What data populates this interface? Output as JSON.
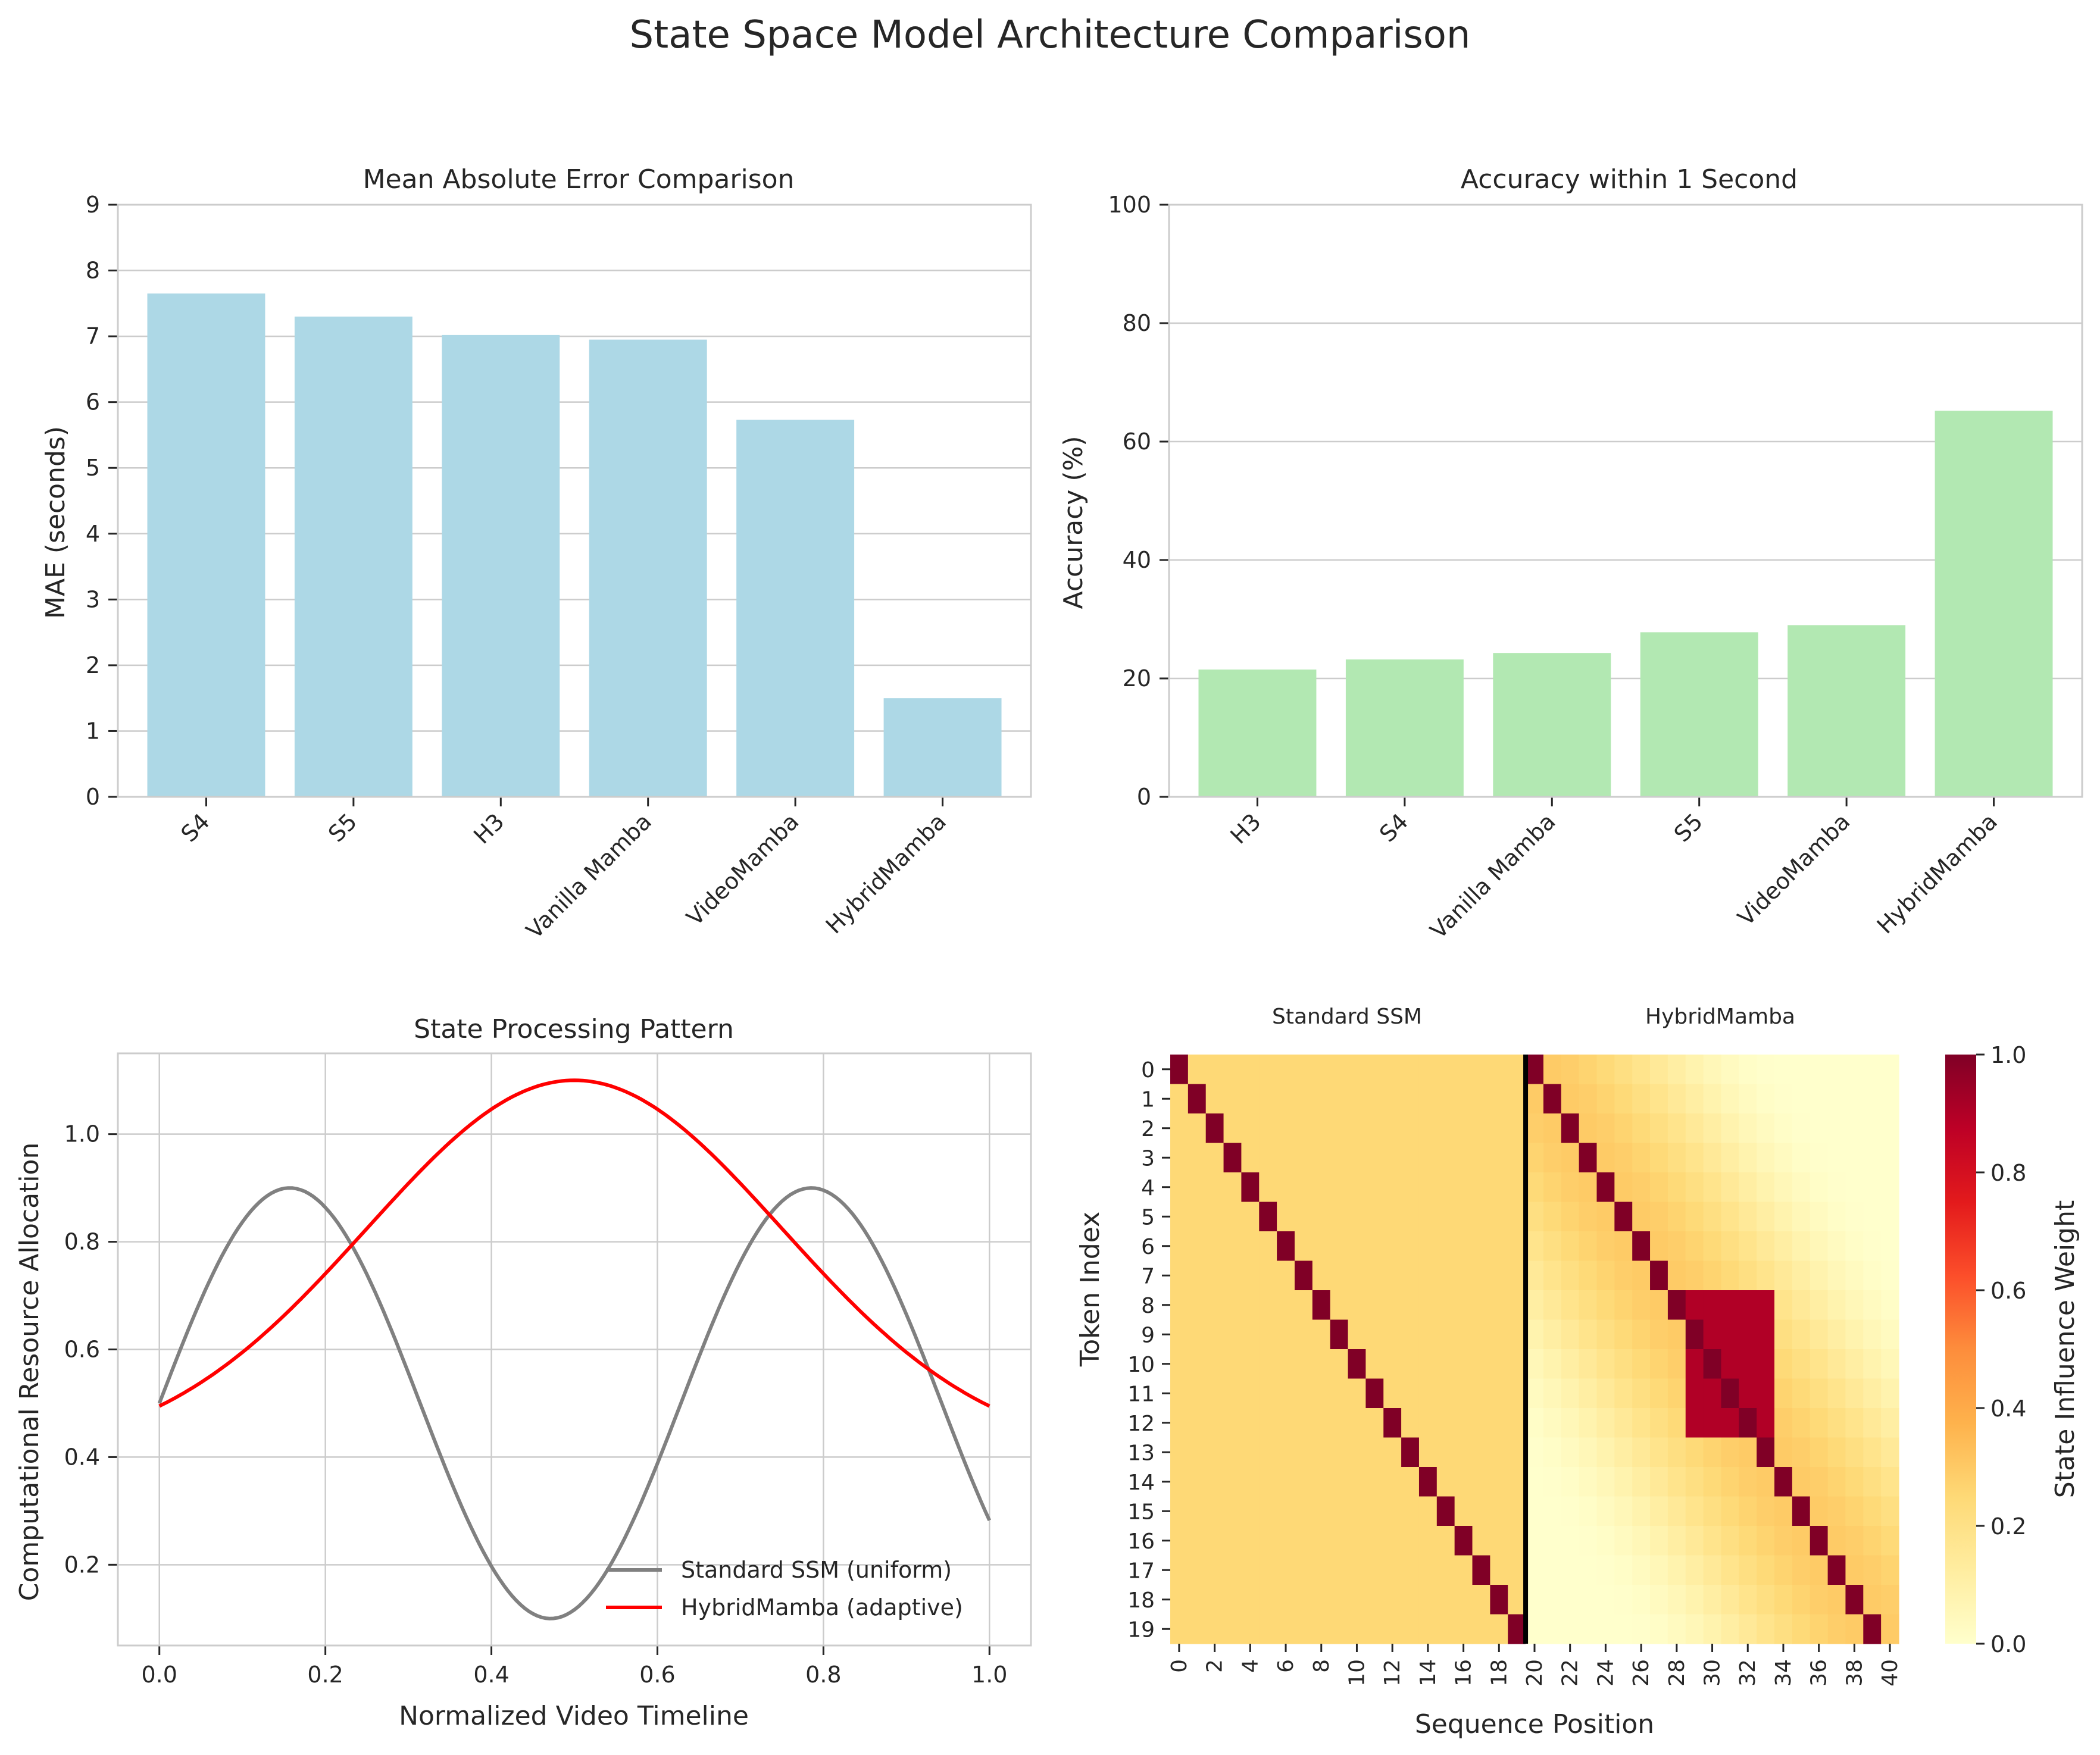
{
  "suptitle": "State Space Model Architecture Comparison",
  "chart_data": [
    {
      "id": "mae",
      "type": "bar",
      "title": "Mean Absolute Error Comparison",
      "xlabel": "",
      "ylabel": "MAE (seconds)",
      "categories": [
        "S4",
        "S5",
        "H3",
        "Vanilla Mamba",
        "VideoMamba",
        "HybridMamba"
      ],
      "values": [
        7.65,
        7.3,
        7.02,
        6.95,
        5.73,
        1.5
      ],
      "ylim": [
        0,
        9
      ],
      "yticks": [
        0,
        1,
        2,
        3,
        4,
        5,
        6,
        7,
        8,
        9
      ],
      "color": "#add8e6",
      "grid": "y"
    },
    {
      "id": "acc",
      "type": "bar",
      "title": "Accuracy within 1 Second",
      "xlabel": "",
      "ylabel": "Accuracy (%)",
      "categories": [
        "H3",
        "S4",
        "Vanilla Mamba",
        "S5",
        "VideoMamba",
        "HybridMamba"
      ],
      "values": [
        21.5,
        23.2,
        24.3,
        27.8,
        29.0,
        65.2
      ],
      "ylim": [
        0,
        100
      ],
      "yticks": [
        0,
        20,
        40,
        60,
        80,
        100
      ],
      "color": "#b2e8b2",
      "grid": "y"
    },
    {
      "id": "pattern",
      "type": "line",
      "title": "State Processing Pattern",
      "xlabel": "Normalized Video Timeline",
      "ylabel": "Computational Resource Allocation",
      "xlim": [
        -0.05,
        1.05
      ],
      "ylim": [
        0.05,
        1.15
      ],
      "xticks": [
        0.0,
        0.2,
        0.4,
        0.6,
        0.8,
        1.0
      ],
      "yticks": [
        0.2,
        0.4,
        0.6,
        0.8,
        1.0
      ],
      "series": [
        {
          "name": "Standard SSM (uniform)",
          "color": "#808080",
          "formula": "0.5 + 0.4*sin(10*x)"
        },
        {
          "name": "HybridMamba (adaptive)",
          "color": "#ff0000",
          "formula": "0.4 + 0.7*exp(-(x-0.5)^2/(2*0.25^2))"
        }
      ],
      "legend": "lower-right",
      "grid": "both"
    },
    {
      "id": "heatmap",
      "type": "heatmap",
      "panels": [
        {
          "title": "Standard SSM",
          "columns": [
            0,
            19
          ],
          "description": "background 0.25, diagonal 1.0"
        },
        {
          "title": "HybridMamba",
          "columns": [
            20,
            40
          ],
          "description": "decaying band 0.15*(1+cos), diagonal 1.0, block rows 8-12 x cols 29-33 = 0.9"
        }
      ],
      "xlabel": "Sequence Position",
      "ylabel": "Token Index",
      "rows": 20,
      "cols": 41,
      "xticks": [
        0,
        2,
        4,
        6,
        8,
        10,
        12,
        14,
        16,
        18,
        20,
        22,
        24,
        26,
        28,
        30,
        32,
        34,
        36,
        38,
        40
      ],
      "yticks": [
        0,
        1,
        2,
        3,
        4,
        5,
        6,
        7,
        8,
        9,
        10,
        11,
        12,
        13,
        14,
        15,
        16,
        17,
        18,
        19
      ],
      "colorbar": {
        "label": "State Influence Weight",
        "min": 0.0,
        "max": 1.0,
        "ticks": [
          0.0,
          0.2,
          0.4,
          0.6,
          0.8,
          1.0
        ],
        "cmap": "YlOrRd"
      },
      "separator_after_column": 19
    }
  ]
}
